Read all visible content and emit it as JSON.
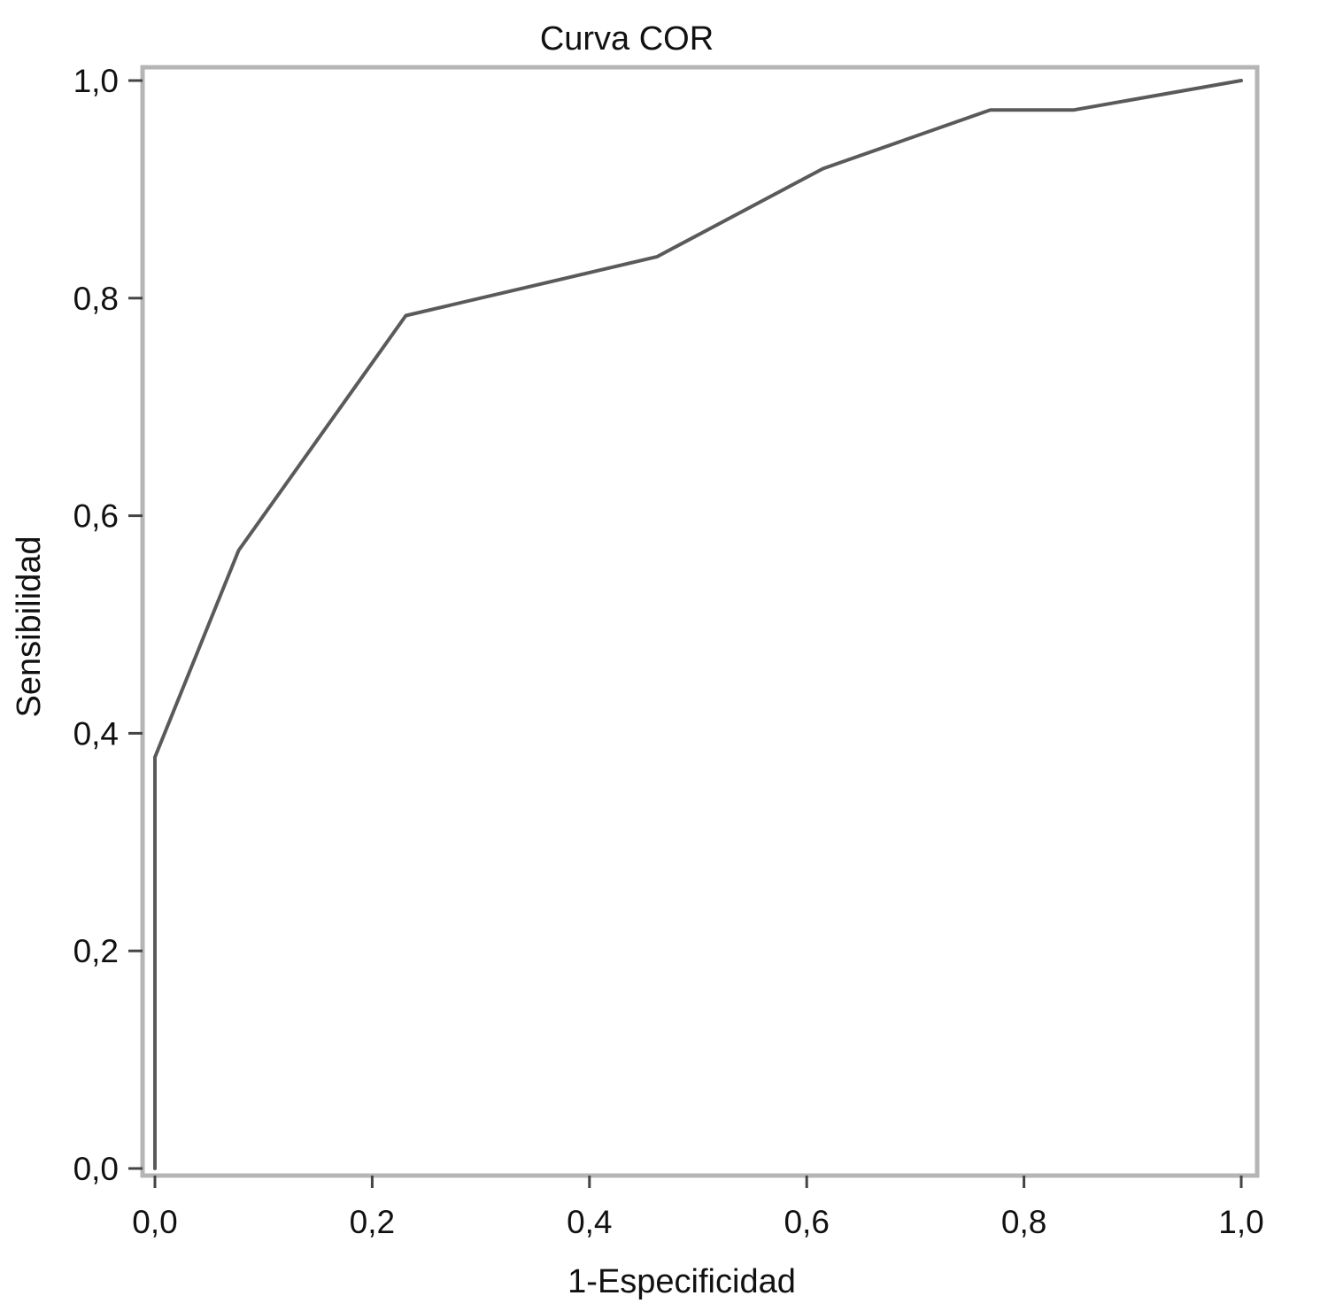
{
  "chart_data": {
    "type": "line",
    "title": "Curva COR",
    "xlabel": "1-Especificidad",
    "ylabel": "Sensibilidad",
    "xlim": [
      0,
      1
    ],
    "ylim": [
      0,
      1
    ],
    "x_ticks": [
      "0,0",
      "0,2",
      "0,4",
      "0,6",
      "0,8",
      "1,0"
    ],
    "y_ticks": [
      "0,0",
      "0,2",
      "0,4",
      "0,6",
      "0,8",
      "1,0"
    ],
    "grid": false,
    "legend": "none",
    "series": [
      {
        "x": [
          0.0,
          0.0,
          0.077,
          0.231,
          0.462,
          0.615,
          0.769,
          0.846,
          1.0
        ],
        "y": [
          0.0,
          0.378,
          0.568,
          0.784,
          0.838,
          0.919,
          0.973,
          0.973,
          1.0
        ]
      }
    ],
    "colors": {
      "line": "#5a5a5a",
      "frame": "#b5b5b5",
      "tick": "#444444"
    }
  }
}
